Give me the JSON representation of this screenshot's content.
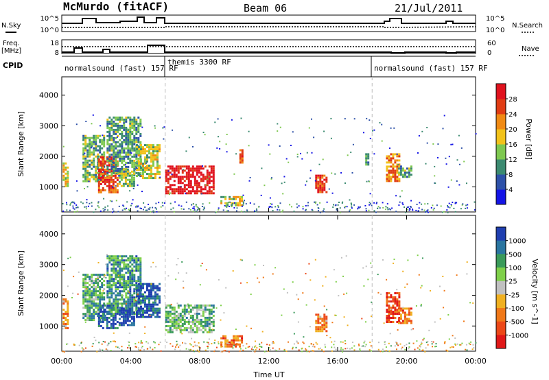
{
  "header": {
    "station": "McMurdo (fitACF)",
    "beam": "Beam 06",
    "date": "21/Jul/2011"
  },
  "top_panels": {
    "nsky_label": "N.Sky",
    "nsky_ticks": [
      "10^5",
      "10^0"
    ],
    "nsearch_label": "N.Search",
    "nsearch_ticks": [
      "10^5",
      "10^0"
    ],
    "freq_label": "Freq.",
    "freq_unit": "[MHz]",
    "freq_ticks": [
      "18",
      "8"
    ],
    "nave_label": "Nave",
    "nave_ticks": [
      "60",
      "0"
    ],
    "cpid_label": "CPID",
    "cpid_segments": [
      {
        "label": "normalsound (fast) 157 RF",
        "start_h": 0,
        "end_h": 6
      },
      {
        "label": "themis 3300 RF",
        "start_h": 6,
        "end_h": 18
      },
      {
        "label": "normalsound (fast) 157 RF",
        "start_h": 18,
        "end_h": 24
      }
    ]
  },
  "chart_data": [
    {
      "type": "heatmap",
      "title": "",
      "xlabel": "",
      "ylabel": "Slant Range [km]",
      "xlim": [
        0,
        24
      ],
      "ylim": [
        180,
        4600
      ],
      "yticks": [
        "1000",
        "2000",
        "3000",
        "4000"
      ],
      "colorbar": {
        "label": "Power [dB]",
        "ticks": [
          "4",
          "8",
          "12",
          "16",
          "20",
          "24",
          "28"
        ],
        "colors": [
          "#1414e6",
          "#2d51a8",
          "#3b8a70",
          "#7ec850",
          "#f2c21a",
          "#f08a14",
          "#e03c14",
          "#e0121e"
        ]
      },
      "regions": [
        {
          "t0": 0.05,
          "t1": 0.4,
          "r0": 1000,
          "r1": 1800,
          "level": 0.55
        },
        {
          "t0": 1.2,
          "t1": 2.4,
          "r0": 1200,
          "r1": 2700,
          "level": 0.4
        },
        {
          "t0": 2.1,
          "t1": 3.2,
          "r0": 800,
          "r1": 2000,
          "level": 0.8
        },
        {
          "t0": 2.6,
          "t1": 4.6,
          "r0": 1400,
          "r1": 3300,
          "level": 0.35
        },
        {
          "t0": 3.3,
          "t1": 4.2,
          "r0": 1000,
          "r1": 1600,
          "level": 0.45
        },
        {
          "t0": 4.3,
          "t1": 5.7,
          "r0": 1300,
          "r1": 2400,
          "level": 0.5
        },
        {
          "t0": 6.0,
          "t1": 8.8,
          "r0": 800,
          "r1": 1700,
          "level": 0.95
        },
        {
          "t0": 9.2,
          "t1": 10.4,
          "r0": 400,
          "r1": 700,
          "level": 0.5
        },
        {
          "t0": 10.3,
          "t1": 10.5,
          "r0": 1800,
          "r1": 2300,
          "level": 0.75
        },
        {
          "t0": 14.7,
          "t1": 15.4,
          "r0": 800,
          "r1": 1400,
          "level": 0.85
        },
        {
          "t0": 17.6,
          "t1": 17.8,
          "r0": 1700,
          "r1": 2100,
          "level": 0.3
        },
        {
          "t0": 18.8,
          "t1": 19.6,
          "r0": 1200,
          "r1": 2100,
          "level": 0.7
        },
        {
          "t0": 19.5,
          "t1": 20.3,
          "r0": 1300,
          "r1": 1700,
          "level": 0.35
        }
      ]
    },
    {
      "type": "heatmap",
      "title": "",
      "xlabel": "Time UT",
      "ylabel": "Slant Range [km]",
      "xlim": [
        0,
        24
      ],
      "ylim": [
        180,
        4600
      ],
      "xticks": [
        "00:00",
        "04:00",
        "08:00",
        "12:00",
        "16:00",
        "20:00",
        "00:00"
      ],
      "yticks": [
        "1000",
        "2000",
        "3000",
        "4000"
      ],
      "colorbar": {
        "label": "Velocity [m s^-1]",
        "ticks": [
          "1000",
          "500",
          "100",
          "25",
          "-25",
          "-100",
          "-500",
          "-1000"
        ],
        "colors": [
          "#1f3fb0",
          "#2a75a0",
          "#3a9a5a",
          "#7fd04a",
          "#c0c0c0",
          "#f0b020",
          "#f07818",
          "#ec4818",
          "#e01818"
        ]
      },
      "regions": [
        {
          "t0": 0.05,
          "t1": 0.4,
          "r0": 900,
          "r1": 1900,
          "level": 0.7
        },
        {
          "t0": 1.2,
          "t1": 2.4,
          "r0": 1200,
          "r1": 2700,
          "level": 0.3
        },
        {
          "t0": 2.1,
          "t1": 3.2,
          "r0": 900,
          "r1": 1700,
          "level": 0.1
        },
        {
          "t0": 2.6,
          "t1": 4.6,
          "r0": 1400,
          "r1": 3300,
          "level": 0.25
        },
        {
          "t0": 3.3,
          "t1": 4.2,
          "r0": 1000,
          "r1": 1600,
          "level": 0.05
        },
        {
          "t0": 4.3,
          "t1": 5.7,
          "r0": 1300,
          "r1": 2400,
          "level": 0.1
        },
        {
          "t0": 6.0,
          "t1": 8.8,
          "r0": 800,
          "r1": 1700,
          "level": 0.35
        },
        {
          "t0": 9.2,
          "t1": 10.4,
          "r0": 300,
          "r1": 700,
          "level": 0.75
        },
        {
          "t0": 14.7,
          "t1": 15.4,
          "r0": 800,
          "r1": 1400,
          "level": 0.7
        },
        {
          "t0": 18.8,
          "t1": 19.6,
          "r0": 1100,
          "r1": 2100,
          "level": 0.85
        },
        {
          "t0": 19.5,
          "t1": 20.3,
          "r0": 1100,
          "r1": 1600,
          "level": 0.75
        }
      ]
    }
  ]
}
